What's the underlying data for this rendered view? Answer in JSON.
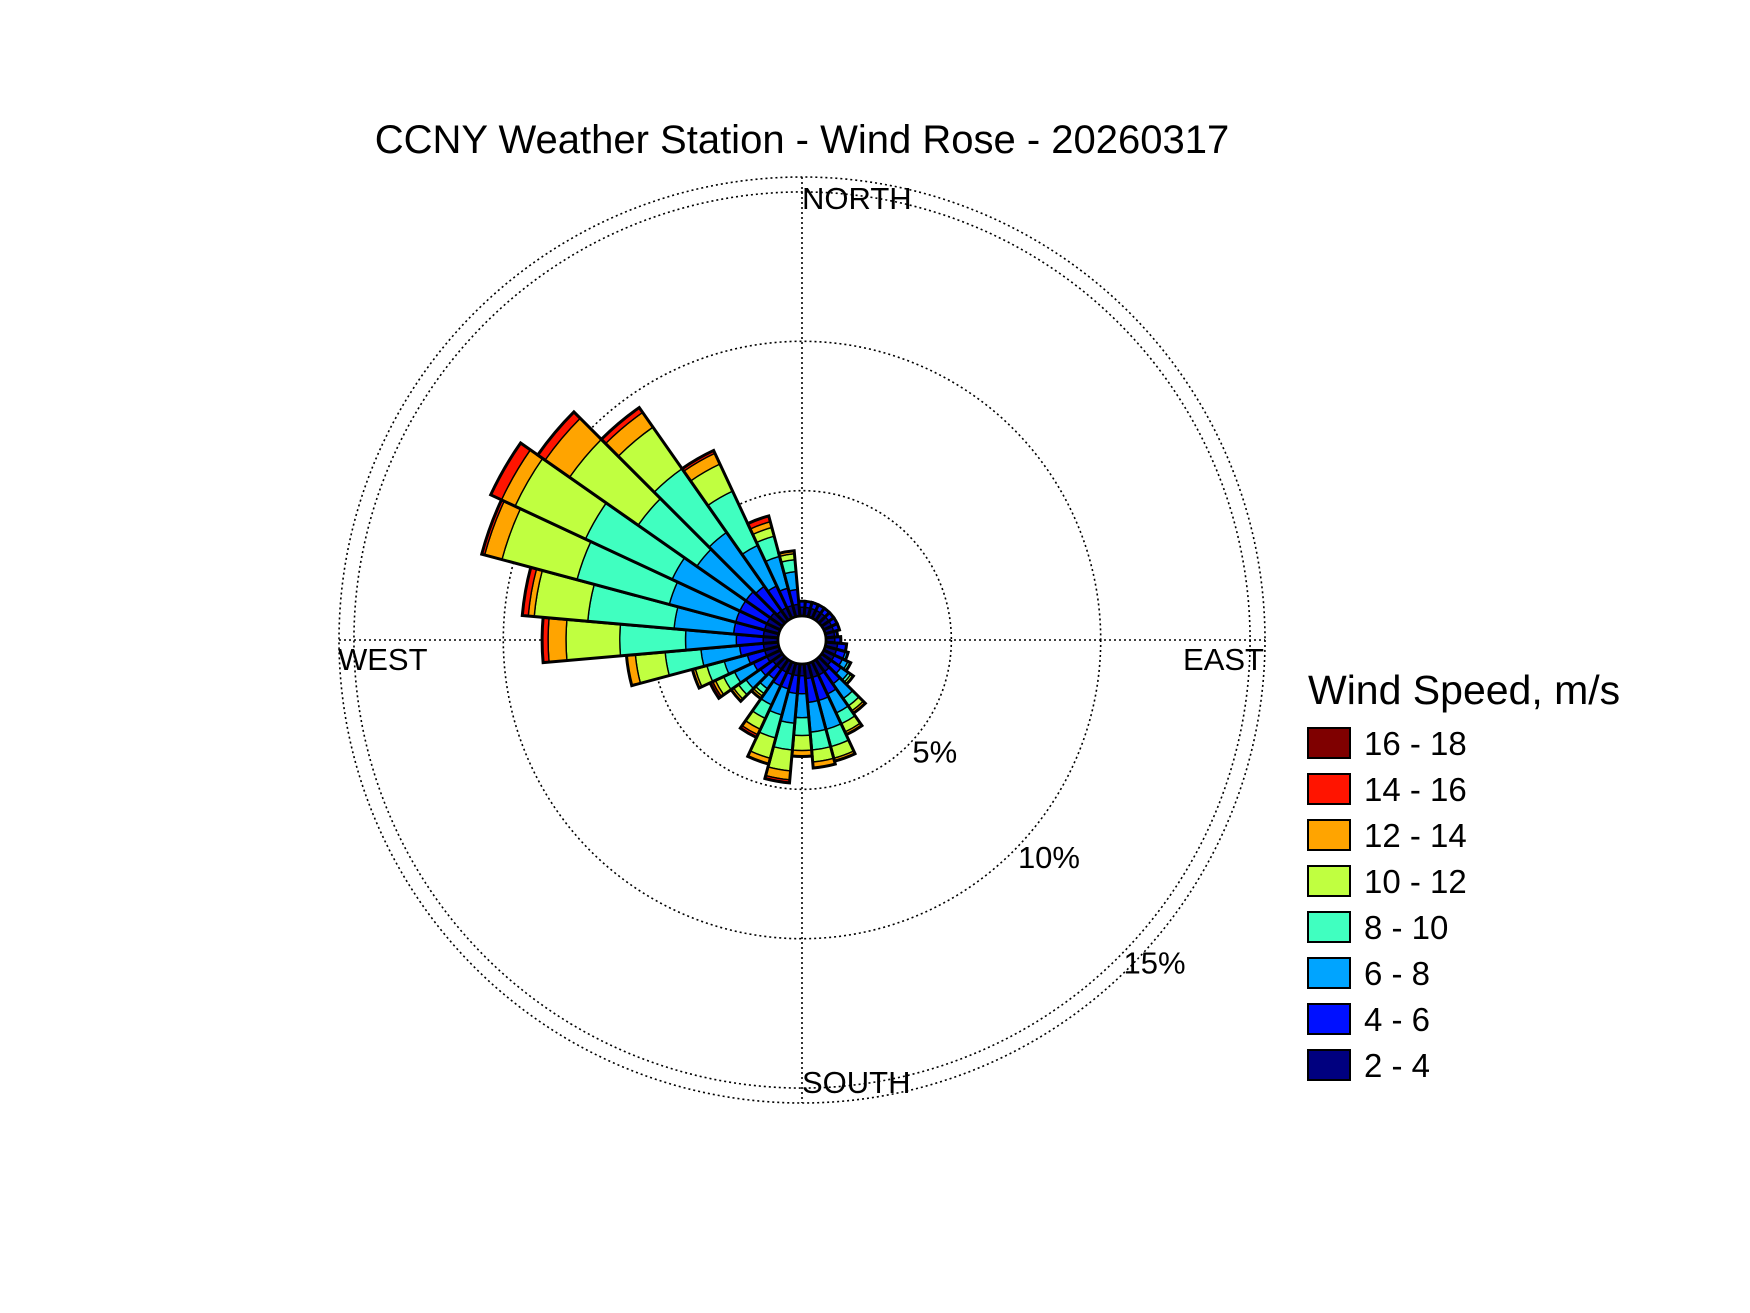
{
  "chart_data": {
    "type": "wind-rose",
    "title": "CCNY Weather Station - Wind Rose - 20260317",
    "direction_labels": {
      "north": "NORTH",
      "east": "EAST",
      "south": "SOUTH",
      "west": "WEST"
    },
    "radial_unit": "%",
    "radial_ticks": [
      {
        "value": 5,
        "label": "5%"
      },
      {
        "value": 10,
        "label": "10%"
      },
      {
        "value": 15,
        "label": "15%"
      }
    ],
    "rmax": 15.5,
    "calm_radius": 0.8,
    "grid": true,
    "legend": {
      "title": "Wind Speed, m/s",
      "position": "right"
    },
    "speed_bins": [
      {
        "label": "2 - 4",
        "color": "#00007f"
      },
      {
        "label": "4 - 6",
        "color": "#0010ff"
      },
      {
        "label": "6 - 8",
        "color": "#00a4ff"
      },
      {
        "label": "8 - 10",
        "color": "#40ffc0"
      },
      {
        "label": "10 - 12",
        "color": "#c0ff40"
      },
      {
        "label": "12 - 14",
        "color": "#ffa400"
      },
      {
        "label": "14 - 16",
        "color": "#ff1400"
      },
      {
        "label": "16 - 18",
        "color": "#7f0000"
      }
    ],
    "sector_width_deg": 10,
    "sectors": [
      {
        "direction": 0,
        "values": [
          0.3,
          0.2,
          0,
          0,
          0,
          0,
          0,
          0
        ]
      },
      {
        "direction": 10,
        "values": [
          0.3,
          0.2,
          0,
          0,
          0,
          0,
          0,
          0
        ]
      },
      {
        "direction": 20,
        "values": [
          0.3,
          0.2,
          0,
          0,
          0,
          0,
          0,
          0
        ]
      },
      {
        "direction": 30,
        "values": [
          0.3,
          0.2,
          0,
          0,
          0,
          0,
          0,
          0
        ]
      },
      {
        "direction": 40,
        "values": [
          0.3,
          0.2,
          0,
          0,
          0,
          0,
          0,
          0
        ]
      },
      {
        "direction": 50,
        "values": [
          0.3,
          0.2,
          0,
          0,
          0,
          0,
          0,
          0
        ]
      },
      {
        "direction": 60,
        "values": [
          0.3,
          0.2,
          0,
          0,
          0,
          0,
          0,
          0
        ]
      },
      {
        "direction": 70,
        "values": [
          0.3,
          0.2,
          0,
          0,
          0,
          0,
          0,
          0
        ]
      },
      {
        "direction": 80,
        "values": [
          0.3,
          0.1,
          0,
          0,
          0,
          0,
          0,
          0
        ]
      },
      {
        "direction": 90,
        "values": [
          0.3,
          0.2,
          0,
          0,
          0,
          0,
          0,
          0
        ]
      },
      {
        "direction": 100,
        "values": [
          0.4,
          0.3,
          0,
          0,
          0,
          0,
          0,
          0
        ]
      },
      {
        "direction": 110,
        "values": [
          0.4,
          0.3,
          0.1,
          0,
          0,
          0,
          0,
          0
        ]
      },
      {
        "direction": 120,
        "values": [
          0.4,
          0.3,
          0.2,
          0.1,
          0,
          0,
          0,
          0
        ]
      },
      {
        "direction": 130,
        "values": [
          0.4,
          0.4,
          0.3,
          0.1,
          0.1,
          0,
          0,
          0
        ]
      },
      {
        "direction": 140,
        "values": [
          0.5,
          0.5,
          0.6,
          0.3,
          0.2,
          0.1,
          0,
          0
        ]
      },
      {
        "direction": 150,
        "values": [
          0.5,
          0.7,
          0.7,
          0.4,
          0.3,
          0.1,
          0,
          0
        ]
      },
      {
        "direction": 160,
        "values": [
          0.5,
          0.8,
          1.0,
          0.6,
          0.4,
          0.1,
          0,
          0
        ]
      },
      {
        "direction": 170,
        "values": [
          0.5,
          0.8,
          1.0,
          0.6,
          0.4,
          0.2,
          0,
          0
        ]
      },
      {
        "direction": 180,
        "values": [
          0.4,
          0.6,
          0.8,
          0.6,
          0.5,
          0.2,
          0,
          0
        ]
      },
      {
        "direction": 190,
        "values": [
          0.4,
          0.6,
          1.0,
          0.9,
          0.7,
          0.3,
          0.1,
          0
        ]
      },
      {
        "direction": 200,
        "values": [
          0.4,
          0.5,
          0.9,
          0.8,
          0.7,
          0.2,
          0,
          0
        ]
      },
      {
        "direction": 210,
        "values": [
          0.4,
          0.5,
          0.7,
          0.5,
          0.4,
          0.2,
          0.1,
          0
        ]
      },
      {
        "direction": 220,
        "values": [
          0.4,
          0.4,
          0.4,
          0.2,
          0.1,
          0.1,
          0,
          0
        ]
      },
      {
        "direction": 230,
        "values": [
          0.4,
          0.5,
          0.6,
          0.3,
          0.2,
          0.1,
          0,
          0
        ]
      },
      {
        "direction": 240,
        "values": [
          0.5,
          0.5,
          0.7,
          0.4,
          0.3,
          0.1,
          0,
          0.1
        ]
      },
      {
        "direction": 250,
        "values": [
          0.5,
          0.6,
          0.8,
          0.6,
          0.4,
          0.1,
          0,
          0
        ]
      },
      {
        "direction": 260,
        "values": [
          0.5,
          0.8,
          1.3,
          1.2,
          1.0,
          0.3,
          0,
          0
        ]
      },
      {
        "direction": 270,
        "values": [
          0.5,
          0.9,
          1.7,
          2.2,
          1.8,
          0.6,
          0.2,
          0
        ]
      },
      {
        "direction": 280,
        "values": [
          0.5,
          1.0,
          2.0,
          2.9,
          1.8,
          0.2,
          0.2,
          0
        ]
      },
      {
        "direction": 290,
        "values": [
          0.5,
          1.0,
          2.3,
          3.2,
          2.6,
          0.6,
          0.1,
          0
        ]
      },
      {
        "direction": 300,
        "values": [
          0.5,
          1.0,
          2.5,
          3.2,
          2.6,
          0.5,
          0.4,
          0
        ]
      },
      {
        "direction": 310,
        "values": [
          0.5,
          1.0,
          2.0,
          2.4,
          2.8,
          1.0,
          0.3,
          0
        ]
      },
      {
        "direction": 320,
        "values": [
          0.4,
          1.0,
          2.2,
          2.6,
          1.7,
          0.6,
          0.2,
          0
        ]
      },
      {
        "direction": 330,
        "values": [
          0.4,
          0.8,
          1.5,
          2.0,
          1.0,
          0.4,
          0.1,
          0
        ]
      },
      {
        "direction": 340,
        "values": [
          0.4,
          0.6,
          1.1,
          0.7,
          0.3,
          0.2,
          0.2,
          0
        ]
      },
      {
        "direction": 350,
        "values": [
          0.4,
          0.5,
          0.6,
          0.4,
          0.2,
          0.1,
          0,
          0
        ]
      }
    ]
  }
}
